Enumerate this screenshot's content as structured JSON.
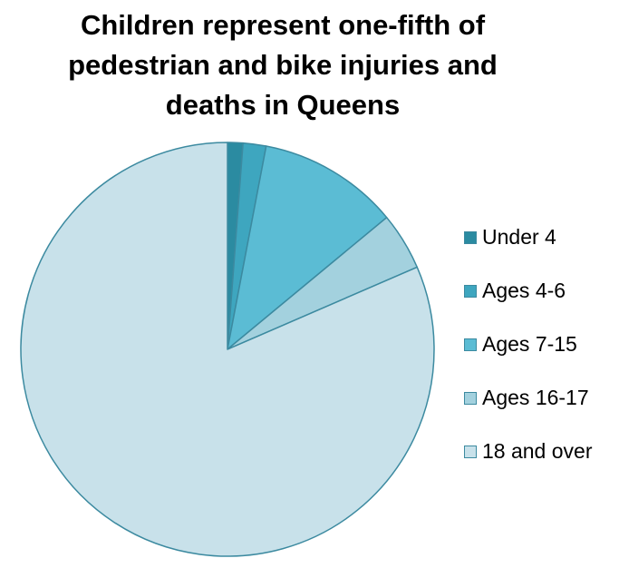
{
  "chart_data": {
    "type": "pie",
    "title_lines": [
      "Children represent one-fifth of",
      "pedestrian and bike injuries and",
      "deaths in Queens"
    ],
    "legend_position": "right",
    "categories": [
      "Under 4",
      "Ages 4-6",
      "Ages 7-15",
      "Ages 16-17",
      "18 and over"
    ],
    "values": [
      1.2,
      1.8,
      11.0,
      4.5,
      81.5
    ],
    "colors": [
      "#2b8ba1",
      "#3ea6bf",
      "#5bbcd4",
      "#a3d1de",
      "#c8e1ea"
    ],
    "stroke_color": "#3c8aa0"
  }
}
